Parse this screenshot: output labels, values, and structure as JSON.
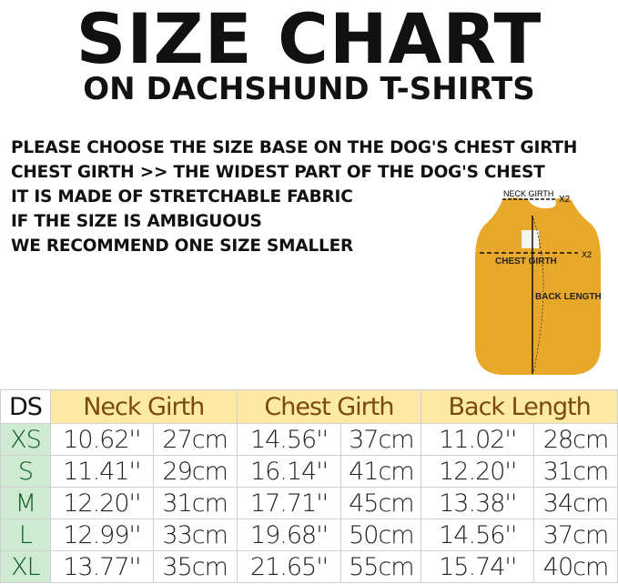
{
  "title": "SIZE CHART",
  "subtitle": "ON DACHSHUND T-SHIRTS",
  "notes": [
    "PLEASE CHOOSE THE SIZE BASE ON THE DOG'S CHEST GIRTH",
    "CHEST GIRTH >> THE WIDEST PART OF THE DOG'S CHEST",
    "IT IS MADE OF STRETCHABLE FABRIC",
    "IF THE SIZE IS AMBIGUOUS",
    "WE RECOMMEND ONE SIZE SMALLER"
  ],
  "diagram": {
    "neck": "NECK GIRTH",
    "neck_mult": "X2",
    "chest": "CHEST GIRTH",
    "chest_mult": "X2",
    "back": "BACK LENGTH",
    "shirt_color": "#e8a82a"
  },
  "table": {
    "headers": [
      "DS",
      "Neck Girth",
      "Chest Girth",
      "Back Length"
    ],
    "rows": [
      {
        "size": "XS",
        "cells": [
          "10.62''",
          "27cm",
          "14.56''",
          "37cm",
          "11.02''",
          "28cm"
        ]
      },
      {
        "size": "S",
        "cells": [
          "11.41''",
          "29cm",
          "16.14''",
          "41cm",
          "12.20''",
          "31cm"
        ]
      },
      {
        "size": "M",
        "cells": [
          "12.20''",
          "31cm",
          "17.71''",
          "45cm",
          "13.38''",
          "34cm"
        ]
      },
      {
        "size": "L",
        "cells": [
          "12.99''",
          "33cm",
          "19.68''",
          "50cm",
          "14.56''",
          "37cm"
        ]
      },
      {
        "size": "XL",
        "cells": [
          "13.77''",
          "35cm",
          "21.65''",
          "55cm",
          "15.74''",
          "40cm"
        ]
      }
    ]
  }
}
